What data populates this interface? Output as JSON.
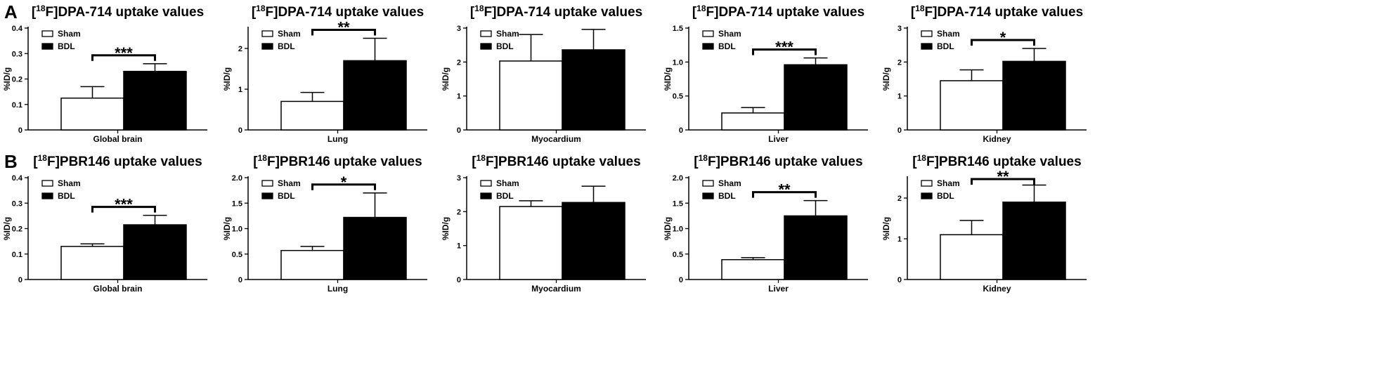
{
  "panel_labels": [
    "A",
    "B"
  ],
  "colors": {
    "sham": "#ffffff",
    "bdl": "#000000",
    "stroke": "#000000"
  },
  "chart_data": [
    {
      "type": "bar",
      "row": 0,
      "col": 0,
      "title_tracer": "DPA-714",
      "title_suffix": " uptake values",
      "isotope": "18",
      "element": "F",
      "categories": [
        "Global brain"
      ],
      "xlabel": "Global brain",
      "ylabel": "%ID/g",
      "ylim": [
        0,
        0.4
      ],
      "yticks": [
        "0",
        "0.1",
        "0.2",
        "0.3",
        "0.4"
      ],
      "ytick_values": [
        0,
        0.1,
        0.2,
        0.3,
        0.4
      ],
      "series": [
        {
          "name": "Sham",
          "values": [
            0.125
          ],
          "error": [
            0.045
          ]
        },
        {
          "name": "BDL",
          "values": [
            0.23
          ],
          "error": [
            0.03
          ]
        }
      ],
      "significance": "***",
      "legend": "top-left"
    },
    {
      "type": "bar",
      "row": 0,
      "col": 1,
      "title_tracer": "DPA-714",
      "title_suffix": " uptake values",
      "isotope": "18",
      "element": "F",
      "categories": [
        "Lung"
      ],
      "xlabel": "Lung",
      "ylabel": "%ID/g",
      "ylim": [
        0,
        2.5
      ],
      "yticks": [
        "0",
        "1",
        "2"
      ],
      "ytick_values": [
        0,
        1,
        2
      ],
      "series": [
        {
          "name": "Sham",
          "values": [
            0.7
          ],
          "error": [
            0.22
          ]
        },
        {
          "name": "BDL",
          "values": [
            1.7
          ],
          "error": [
            0.55
          ]
        }
      ],
      "significance": "**",
      "legend": "top-left"
    },
    {
      "type": "bar",
      "row": 0,
      "col": 2,
      "title_tracer": "DPA-714",
      "title_suffix": " uptake values",
      "isotope": "18",
      "element": "F",
      "categories": [
        "Myocardium"
      ],
      "xlabel": "Myocardium",
      "ylabel": "%ID/g",
      "ylim": [
        0,
        3
      ],
      "yticks": [
        "0",
        "1",
        "2",
        "3"
      ],
      "ytick_values": [
        0,
        1,
        2,
        3
      ],
      "series": [
        {
          "name": "Sham",
          "values": [
            2.03
          ],
          "error": [
            0.78
          ]
        },
        {
          "name": "BDL",
          "values": [
            2.36
          ],
          "error": [
            0.6
          ]
        }
      ],
      "significance": "",
      "legend": "top-left"
    },
    {
      "type": "bar",
      "row": 0,
      "col": 3,
      "title_tracer": "DPA-714",
      "title_suffix": " uptake values",
      "isotope": "18",
      "element": "F",
      "categories": [
        "Liver"
      ],
      "xlabel": "Liver",
      "ylabel": "%ID/g",
      "ylim": [
        0,
        1.5
      ],
      "yticks": [
        "0",
        "0.5",
        "1.0",
        "1.5"
      ],
      "ytick_values": [
        0,
        0.5,
        1,
        1.5
      ],
      "series": [
        {
          "name": "Sham",
          "values": [
            0.25
          ],
          "error": [
            0.08
          ]
        },
        {
          "name": "BDL",
          "values": [
            0.96
          ],
          "error": [
            0.1
          ]
        }
      ],
      "significance": "***",
      "legend": "top-left"
    },
    {
      "type": "bar",
      "row": 0,
      "col": 4,
      "title_tracer": "DPA-714",
      "title_suffix": " uptake values",
      "isotope": "18",
      "element": "F",
      "categories": [
        "Kidney"
      ],
      "xlabel": "Kidney",
      "ylabel": "%ID/g",
      "ylim": [
        0,
        3
      ],
      "yticks": [
        "0",
        "1",
        "2",
        "3"
      ],
      "ytick_values": [
        0,
        1,
        2,
        3
      ],
      "series": [
        {
          "name": "Sham",
          "values": [
            1.45
          ],
          "error": [
            0.32
          ]
        },
        {
          "name": "BDL",
          "values": [
            2.02
          ],
          "error": [
            0.38
          ]
        }
      ],
      "significance": "*",
      "legend": "top-left"
    },
    {
      "type": "bar",
      "row": 1,
      "col": 0,
      "title_tracer": "PBR146",
      "title_suffix": " uptake values",
      "isotope": "18",
      "element": "F",
      "categories": [
        "Global brain"
      ],
      "xlabel": "Global brain",
      "ylabel": "%ID/g",
      "ylim": [
        0,
        0.4
      ],
      "yticks": [
        "0",
        "0.1",
        "0.2",
        "0.3",
        "0.4"
      ],
      "ytick_values": [
        0,
        0.1,
        0.2,
        0.3,
        0.4
      ],
      "series": [
        {
          "name": "Sham",
          "values": [
            0.13
          ],
          "error": [
            0.01
          ]
        },
        {
          "name": "BDL",
          "values": [
            0.215
          ],
          "error": [
            0.037
          ]
        }
      ],
      "significance": "***",
      "legend": "top-left"
    },
    {
      "type": "bar",
      "row": 1,
      "col": 1,
      "title_tracer": "PBR146",
      "title_suffix": " uptake values",
      "isotope": "18",
      "element": "F",
      "categories": [
        "Lung"
      ],
      "xlabel": "Lung",
      "ylabel": "%ID/g",
      "ylim": [
        0,
        2.0
      ],
      "yticks": [
        "0",
        "0.5",
        "1.0",
        "1.5",
        "2.0"
      ],
      "ytick_values": [
        0,
        0.5,
        1,
        1.5,
        2
      ],
      "series": [
        {
          "name": "Sham",
          "values": [
            0.57
          ],
          "error": [
            0.08
          ]
        },
        {
          "name": "BDL",
          "values": [
            1.22
          ],
          "error": [
            0.48
          ]
        }
      ],
      "significance": "*",
      "legend": "top-left"
    },
    {
      "type": "bar",
      "row": 1,
      "col": 2,
      "title_tracer": "PBR146",
      "title_suffix": " uptake values",
      "isotope": "18",
      "element": "F",
      "categories": [
        "Myocardium"
      ],
      "xlabel": "Myocardium",
      "ylabel": "%ID/g",
      "ylim": [
        0,
        3
      ],
      "yticks": [
        "0",
        "1",
        "2",
        "3"
      ],
      "ytick_values": [
        0,
        1,
        2,
        3
      ],
      "series": [
        {
          "name": "Sham",
          "values": [
            2.15
          ],
          "error": [
            0.17
          ]
        },
        {
          "name": "BDL",
          "values": [
            2.27
          ],
          "error": [
            0.48
          ]
        }
      ],
      "significance": "",
      "legend": "top-left"
    },
    {
      "type": "bar",
      "row": 1,
      "col": 3,
      "title_tracer": "PBR146",
      "title_suffix": " uptake values",
      "isotope": "18",
      "element": "F",
      "categories": [
        "Liver"
      ],
      "xlabel": "Liver",
      "ylabel": "%ID/g",
      "ylim": [
        0,
        2.0
      ],
      "yticks": [
        "0",
        "0.5",
        "1.0",
        "1.5",
        "2.0"
      ],
      "ytick_values": [
        0,
        0.5,
        1,
        1.5,
        2
      ],
      "series": [
        {
          "name": "Sham",
          "values": [
            0.39
          ],
          "error": [
            0.04
          ]
        },
        {
          "name": "BDL",
          "values": [
            1.25
          ],
          "error": [
            0.3
          ]
        }
      ],
      "significance": "**",
      "legend": "top-left"
    },
    {
      "type": "bar",
      "row": 1,
      "col": 4,
      "title_tracer": "PBR146",
      "title_suffix": " uptake values",
      "isotope": "18",
      "element": "F",
      "categories": [
        "Kidney"
      ],
      "xlabel": "Kidney",
      "ylabel": "%ID/g",
      "ylim": [
        0,
        2.5
      ],
      "yticks": [
        "0",
        "1",
        "2"
      ],
      "ytick_values": [
        0,
        1,
        2
      ],
      "series": [
        {
          "name": "Sham",
          "values": [
            1.1
          ],
          "error": [
            0.35
          ]
        },
        {
          "name": "BDL",
          "values": [
            1.9
          ],
          "error": [
            0.42
          ]
        }
      ],
      "significance": "**",
      "legend": "top-left"
    }
  ]
}
